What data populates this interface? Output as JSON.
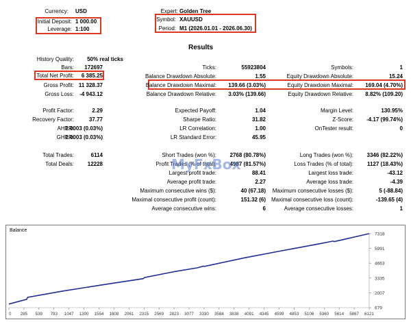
{
  "header": {
    "currency": {
      "label": "Currency:",
      "value": "USD"
    },
    "initial_deposit": {
      "label": "Initial Deposit:",
      "value": "1 000.00"
    },
    "leverage": {
      "label": "Leverage:",
      "value": "1:100"
    },
    "expert": {
      "label": "Expert:",
      "value": "Golden Tree"
    },
    "symbol": {
      "label": "Symbol:",
      "value": "XAUUSD"
    },
    "period": {
      "label": "Period:",
      "value": "M1 (2026.01.01 - 2026.06.30)"
    }
  },
  "results_title": "Results",
  "stats": {
    "history_quality": {
      "label": "History Quality:",
      "value": "50% real ticks"
    },
    "bars": {
      "label": "Bars:",
      "value": "172697"
    },
    "ticks": {
      "label": "Ticks:",
      "value": "55923804"
    },
    "symbols": {
      "label": "Symbols:",
      "value": "1"
    },
    "total_net_profit": {
      "label": "Total Net Profit:",
      "value": "6 385.25"
    },
    "balance_dd_abs": {
      "label": "Balance Drawdown Absolute:",
      "value": "1.55"
    },
    "equity_dd_abs": {
      "label": "Equity Drawdown Absolute:",
      "value": "15.24"
    },
    "gross_profit": {
      "label": "Gross Profit:",
      "value": "11 328.37"
    },
    "balance_dd_max": {
      "label": "Balance Drawdown Maximal:",
      "value": "139.66 (3.03%)"
    },
    "equity_dd_max": {
      "label": "Equity Drawdown Maximal:",
      "value": "169.04 (4.70%)"
    },
    "gross_loss": {
      "label": "Gross Loss:",
      "value": "-4 943.12"
    },
    "balance_dd_rel": {
      "label": "Balance Drawdown Relative:",
      "value": "3.03% (139.66)"
    },
    "equity_dd_rel": {
      "label": "Equity Drawdown Relative:",
      "value": "8.82% (109.20)"
    },
    "profit_factor": {
      "label": "Profit Factor:",
      "value": "2.29"
    },
    "expected_payoff": {
      "label": "Expected Payoff:",
      "value": "1.04"
    },
    "margin_level": {
      "label": "Margin Level:",
      "value": "130.95%"
    },
    "recovery_factor": {
      "label": "Recovery Factor:",
      "value": "37.77"
    },
    "sharpe_ratio": {
      "label": "Sharpe Ratio:",
      "value": "31.82"
    },
    "z_score": {
      "label": "Z-Score:",
      "value": "-4.17 (99.74%)"
    },
    "ahpr": {
      "label": "AHPR:",
      "value": "1.0003 (0.03%)"
    },
    "lr_correlation": {
      "label": "LR Correlation:",
      "value": "1.00"
    },
    "ontester": {
      "label": "OnTester result:",
      "value": "0"
    },
    "ghpr": {
      "label": "GHPR:",
      "value": "1.0003 (0.03%)"
    },
    "lr_std_error": {
      "label": "LR Standard Error:",
      "value": "45.95"
    },
    "total_trades": {
      "label": "Total Trades:",
      "value": "6114"
    },
    "short_trades": {
      "label": "Short Trades (won %):",
      "value": "2768 (80.78%)"
    },
    "long_trades": {
      "label": "Long Trades (won %):",
      "value": "3346 (82.22%)"
    },
    "total_deals": {
      "label": "Total Deals:",
      "value": "12228"
    },
    "profit_trades": {
      "label": "Profit Trades (% of total):",
      "value": "4987 (81.57%)"
    },
    "loss_trades": {
      "label": "Loss Trades (% of total):",
      "value": "1127 (18.43%)"
    },
    "largest_profit": {
      "label": "Largest profit trade:",
      "value": "88.41"
    },
    "largest_loss": {
      "label": "Largest loss trade:",
      "value": "-43.12"
    },
    "average_profit": {
      "label": "Average profit trade:",
      "value": "2.27"
    },
    "average_loss": {
      "label": "Average loss trade:",
      "value": "-4.39"
    },
    "max_consec_wins": {
      "label": "Maximum consecutive wins ($):",
      "value": "40 (67.18)"
    },
    "max_consec_losses": {
      "label": "Maximum consecutive losses ($):",
      "value": "5 (-88.84)"
    },
    "max_consec_profit": {
      "label": "Maximal consecutive profit (count):",
      "value": "151.32 (6)"
    },
    "max_consec_loss": {
      "label": "Maximal consecutive loss (count):",
      "value": "-139.65 (4)"
    },
    "avg_consec_wins": {
      "label": "Average consecutive wins:",
      "value": "6"
    },
    "avg_consec_losses": {
      "label": "Average consecutive losses:",
      "value": "1"
    }
  },
  "watermark": "MyFxBox",
  "colors": {
    "highlight": "#e0361f",
    "balance_line": "#1f2b96",
    "watermark": "#5a7fd6"
  },
  "chart_data": {
    "type": "line",
    "title": "Balance",
    "x_ticks": [
      "0",
      "285",
      "539",
      "793",
      "1047",
      "1300",
      "1554",
      "1808",
      "2061",
      "2315",
      "2569",
      "2823",
      "3077",
      "3330",
      "3584",
      "3838",
      "4091",
      "4345",
      "4599",
      "4853",
      "5106",
      "5360",
      "5614",
      "5867",
      "6121"
    ],
    "y_ticks": [
      "679",
      "2007",
      "3335",
      "4663",
      "5991",
      "7318"
    ],
    "ylim": [
      679,
      7318
    ],
    "xlim": [
      0,
      6114
    ],
    "series": [
      {
        "x": [
          0,
          300,
          320,
          900,
          1500,
          1800,
          2280,
          2300,
          2800,
          3200,
          3300,
          3320,
          4000,
          4600,
          4800,
          5300,
          5500,
          5520,
          6114
        ],
        "y": [
          1000,
          1420,
          1600,
          2150,
          2650,
          2900,
          3280,
          3380,
          3900,
          4250,
          4400,
          4380,
          5150,
          5750,
          5950,
          6440,
          6650,
          6600,
          7318
        ]
      }
    ]
  }
}
